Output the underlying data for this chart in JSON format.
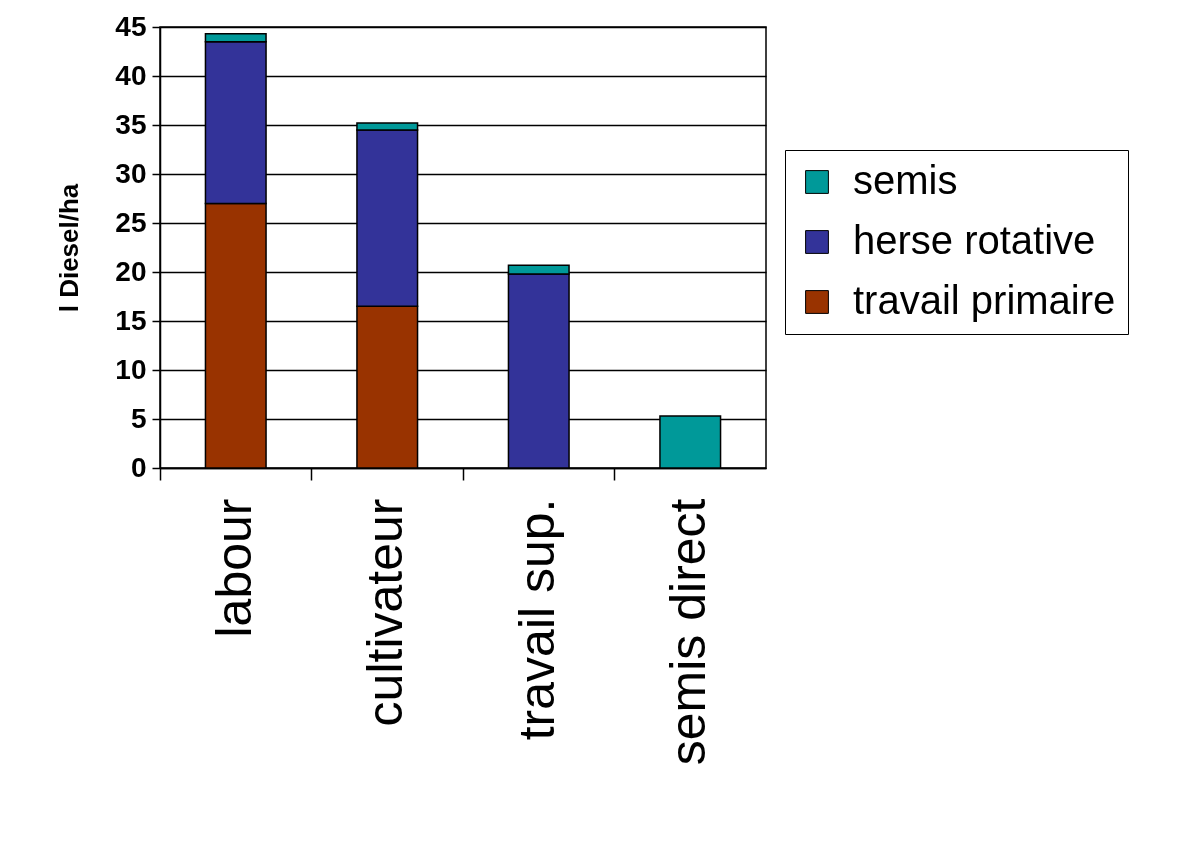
{
  "chart_data": {
    "type": "bar",
    "stacked": true,
    "ylabel": "l Diesel/ha",
    "categories": [
      "labour",
      "cultivateur",
      "travail sup.",
      "semis direct"
    ],
    "series": [
      {
        "name": "travail primaire",
        "color": "#993300",
        "values": [
          27,
          16.5,
          null,
          null
        ]
      },
      {
        "name": "herse rotative",
        "color": "#333399",
        "values": [
          16.5,
          18,
          19.8,
          null
        ]
      },
      {
        "name": "semis",
        "color": "#009999",
        "values": [
          0.8,
          0.7,
          0.9,
          5.3
        ]
      }
    ],
    "ylim": [
      0,
      45
    ],
    "yticks": [
      0,
      5,
      10,
      15,
      20,
      25,
      30,
      35,
      40,
      45
    ],
    "grid": "y",
    "legend": "right"
  }
}
